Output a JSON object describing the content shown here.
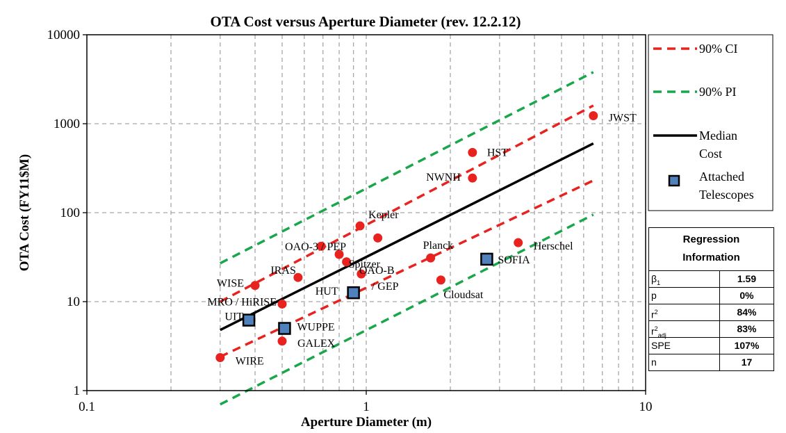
{
  "chart_data": {
    "type": "scatter",
    "title": "OTA Cost versus Aperture Diameter (rev. 12.2.12)",
    "xlabel": "Aperture Diameter (m)",
    "ylabel": "OTA Cost (FY11$M)",
    "xscale": "log",
    "yscale": "log",
    "xlim": [
      0.1,
      10
    ],
    "ylim": [
      1,
      10000
    ],
    "xticks": [
      "0.1",
      "1",
      "10"
    ],
    "yticks": [
      "1",
      "10",
      "100",
      "1000",
      "10000"
    ],
    "grid": true,
    "points": [
      {
        "label": "WIRE",
        "x": 0.3,
        "y": 2.35
      },
      {
        "label": "WISE",
        "x": 0.4,
        "y": 15.2
      },
      {
        "label": "MRO / HiRISE",
        "x": 0.5,
        "y": 9.4
      },
      {
        "label": "GALEX",
        "x": 0.5,
        "y": 3.6
      },
      {
        "label": "IRAS",
        "x": 0.57,
        "y": 18.7
      },
      {
        "label": "",
        "x": 0.69,
        "y": 42
      },
      {
        "label": "OAO-3 / PEP",
        "x": 0.8,
        "y": 34
      },
      {
        "label": "Spitzer",
        "x": 0.85,
        "y": 28
      },
      {
        "label": "OAO-B / GEP",
        "x": 0.96,
        "y": 20.5
      },
      {
        "label": "Kepler",
        "x": 0.95,
        "y": 71
      },
      {
        "label": "",
        "x": 1.1,
        "y": 52
      },
      {
        "label": "Planck",
        "x": 1.7,
        "y": 31
      },
      {
        "label": "Cloudsat",
        "x": 1.85,
        "y": 17.5
      },
      {
        "label": "NWNH",
        "x": 2.4,
        "y": 245
      },
      {
        "label": "HST",
        "x": 2.4,
        "y": 475
      },
      {
        "label": "Herschel",
        "x": 3.5,
        "y": 46
      },
      {
        "label": "JWST",
        "x": 6.5,
        "y": 1230
      }
    ],
    "attached_telescopes": [
      {
        "label": "UIT",
        "x": 0.38,
        "y": 6.2
      },
      {
        "label": "WUPPE",
        "x": 0.51,
        "y": 5.0
      },
      {
        "label": "HUT",
        "x": 0.9,
        "y": 12.6
      },
      {
        "label": "SOFIA",
        "x": 2.7,
        "y": 30
      }
    ],
    "lines": [
      {
        "name": "Median Cost",
        "color": "#000000",
        "dash": "solid",
        "x": [
          0.3,
          6.5
        ],
        "y": [
          4.8,
          600
        ]
      },
      {
        "name": "90% CI",
        "color": "#e8231f",
        "dash": "dashed",
        "x": [
          0.3,
          6.5
        ],
        "y": [
          2.4,
          230
        ]
      },
      {
        "name": "90% CI",
        "color": "#e8231f",
        "dash": "dashed",
        "x": [
          0.3,
          6.5
        ],
        "y": [
          10,
          1600
        ]
      },
      {
        "name": "90% PI",
        "color": "#1aa64a",
        "dash": "dashed",
        "x": [
          0.3,
          6.5
        ],
        "y": [
          0.7,
          95
        ]
      },
      {
        "name": "90% PI",
        "color": "#1aa64a",
        "dash": "dashed",
        "x": [
          0.3,
          6.5
        ],
        "y": [
          27,
          3800
        ]
      }
    ],
    "legend_position": "right",
    "legend": [
      {
        "label": "90% CI",
        "kind": "line",
        "color": "#e8231f",
        "dash": "dashed"
      },
      {
        "label": "90% PI",
        "kind": "line",
        "color": "#1aa64a",
        "dash": "dashed"
      },
      {
        "label": "Median Cost",
        "kind": "line",
        "color": "#000000",
        "dash": "solid"
      },
      {
        "label": "Attached Telescopes",
        "kind": "square",
        "color": "#4f81bd"
      }
    ],
    "colors": {
      "point": "#e8231f",
      "square": "#4f81bd",
      "grid": "#a6a6a6"
    }
  },
  "regression": {
    "title_line1": "Regression",
    "title_line2": "Information",
    "rows": [
      {
        "name": "β",
        "sub": "1",
        "sup": "",
        "value": "1.59"
      },
      {
        "name": "p",
        "sub": "",
        "sup": "",
        "value": "0%"
      },
      {
        "name": "r",
        "sub": "",
        "sup": "2",
        "value": "84%"
      },
      {
        "name": "r",
        "sub": "adj",
        "sup": "2",
        "value": "83%"
      },
      {
        "name": "SPE",
        "sub": "",
        "sup": "",
        "value": "107%"
      },
      {
        "name": "n",
        "sub": "",
        "sup": "",
        "value": "17"
      }
    ]
  }
}
